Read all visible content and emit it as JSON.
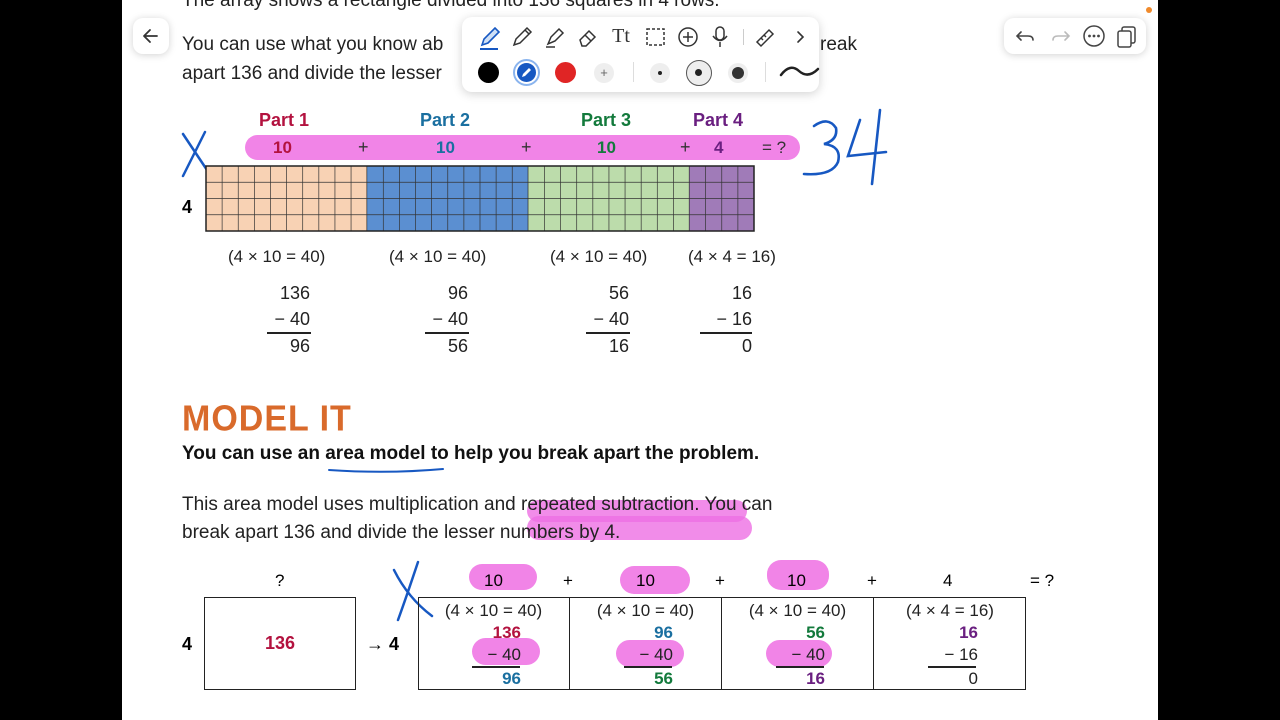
{
  "colors": {
    "part1": "#b3123f",
    "part2": "#1a6fa0",
    "part3": "#137a3c",
    "part4": "#6a1f80",
    "highlight": "#ee6fe3",
    "model_it": "#d96a2b",
    "ink_blue": "#1758c2"
  },
  "toolbar": {
    "top_icons": [
      "pen-icon",
      "pencil-icon",
      "highlighter-icon",
      "eraser-icon",
      "text-icon",
      "lasso-select-icon",
      "add-icon",
      "microphone-icon",
      "ruler-icon",
      "chevron-right-icon"
    ],
    "add_color_label": "+"
  },
  "text": {
    "top_cut": "The array shows a rectangle divided into 136 squares in 4 rows.",
    "para1_line1_a": "You can use what you know ab",
    "para1_line1_b": "reak",
    "para1_line2": "apart 136 and divide the lesser",
    "side_label": "4",
    "handwritten_answer": "34",
    "handwritten_x": "X",
    "model_it": "MODEL IT",
    "subheading": "You can use an area model to help you break apart the problem.",
    "para2_line1": "This area model uses multiplication and repeated subtraction. You can",
    "para2_line2": "break apart 136 and divide the lesser numbers by 4."
  },
  "array": {
    "parts": [
      {
        "label": "Part 1",
        "value": "10"
      },
      {
        "label": "Part 2",
        "value": "10"
      },
      {
        "label": "Part 3",
        "value": "10"
      },
      {
        "label": "Part 4",
        "value": "4"
      }
    ],
    "plus": "+",
    "equals": "= ?",
    "equations": [
      "(4 × 10 = 40)",
      "(4 × 10 = 40)",
      "(4 × 10 = 40)",
      "(4 × 4 = 16)"
    ],
    "subtractions": [
      {
        "top": "136",
        "minus": "− 40",
        "result": "96"
      },
      {
        "top": "96",
        "minus": "− 40",
        "result": "56"
      },
      {
        "top": "56",
        "minus": "− 40",
        "result": "16"
      },
      {
        "top": "16",
        "minus": "− 16",
        "result": "0"
      }
    ]
  },
  "area_model": {
    "question": "?",
    "side": "4",
    "total": "136",
    "arrow": "→ 4",
    "tops": [
      "10",
      "10",
      "10",
      "4"
    ],
    "plus": "+",
    "equals": "= ?",
    "cells": [
      {
        "eq": "(4 × 10 = 40)",
        "top": "136",
        "minus": "− 40",
        "result": "96"
      },
      {
        "eq": "(4 × 10 = 40)",
        "top": "96",
        "minus": "− 40",
        "result": "56"
      },
      {
        "eq": "(4 × 10 = 40)",
        "top": "56",
        "minus": "− 40",
        "result": "16"
      },
      {
        "eq": "(4 × 4 = 16)",
        "top": "16",
        "minus": "− 16",
        "result": "0"
      }
    ]
  }
}
